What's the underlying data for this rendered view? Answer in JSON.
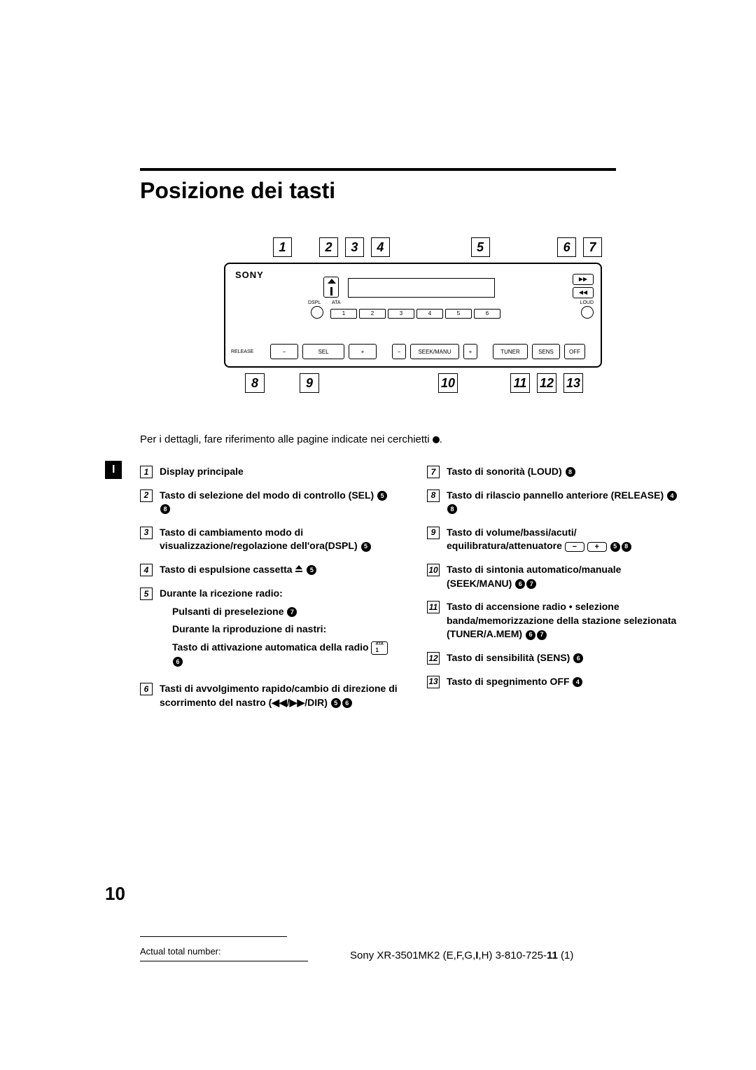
{
  "title": "Posizione dei tasti",
  "intro": "Per i dettagli, fare riferimento alle pagine indicate nei cerchietti",
  "diagram": {
    "brand": "SONY",
    "top_callouts": [
      1,
      2,
      3,
      4,
      5,
      6,
      7
    ],
    "bottom_callouts": [
      8,
      9,
      10,
      11,
      12,
      13
    ],
    "presets": [
      "1",
      "2",
      "3",
      "4",
      "5",
      "6"
    ],
    "labels": {
      "dspl": "DSPL",
      "ata": "ATA",
      "loud": "LOUD",
      "release": "RELEASE",
      "sel": "SEL",
      "seek": "SEEK/MANU",
      "tuner": "TUNER",
      "sens": "SENS",
      "off": "OFF",
      "ff": "▶▶",
      "rw": "◀◀"
    }
  },
  "side_tab": "I",
  "page_number": "10",
  "left_items": [
    {
      "n": "1",
      "text": "Display principale",
      "refs": []
    },
    {
      "n": "2",
      "text": "Tasto di selezione del modo di controllo (SEL)",
      "refs": [
        "5",
        "8"
      ]
    },
    {
      "n": "3",
      "text": "Tasto di cambiamento modo di visualizzazione/regolazione dell'ora(DSPL)",
      "refs": [
        "5"
      ]
    },
    {
      "n": "4",
      "text": "Tasto di espulsione cassetta",
      "eject": true,
      "refs": [
        "5"
      ]
    },
    {
      "n": "5",
      "text": "Durante la ricezione radio:",
      "refs": [],
      "subs": [
        {
          "text": "Pulsanti di preselezione",
          "refs": [
            "7"
          ]
        },
        {
          "text": "Durante la riproduzione di nastri:",
          "refs": []
        },
        {
          "text": "Tasto di attivazione automatica della radio",
          "ata": true,
          "refs": [
            "6"
          ]
        }
      ]
    },
    {
      "n": "6",
      "text": "Tasti di avvolgimento rapido/cambio di direzione di scorrimento del nastro (◀◀/▶▶/DIR)",
      "refs": [
        "5",
        "6"
      ]
    }
  ],
  "right_items": [
    {
      "n": "7",
      "text": "Tasto di sonorità (LOUD)",
      "refs": [
        "8"
      ]
    },
    {
      "n": "8",
      "text": "Tasto di rilascio pannello anteriore (RELEASE)",
      "refs": [
        "4",
        "8"
      ]
    },
    {
      "n": "9",
      "text": "Tasto  di volume/bassi/acuti/ equilibratura/attenuatore",
      "pm": true,
      "refs": [
        "5",
        "8"
      ]
    },
    {
      "n": "10",
      "text": "Tasto di sintonia automatico/manuale (SEEK/MANU)",
      "refs": [
        "6",
        "7"
      ]
    },
    {
      "n": "11",
      "text": "Tasto di accensione radio • selezione banda/memorizzazione della stazione selezionata (TUNER/A.MEM)",
      "refs": [
        "6",
        "7"
      ]
    },
    {
      "n": "12",
      "text": "Tasto di sensibilità (SENS)",
      "refs": [
        "6"
      ]
    },
    {
      "n": "13",
      "text": "Tasto di spegnimento OFF",
      "refs": [
        "4"
      ]
    }
  ],
  "footer": {
    "actual": "Actual total number:",
    "model": "Sony XR-3501MK2 (E,F,G,",
    "lang": "I",
    "model2": ",H)  3-810-725-",
    "bold11": "11",
    "tail": "  (1)"
  }
}
